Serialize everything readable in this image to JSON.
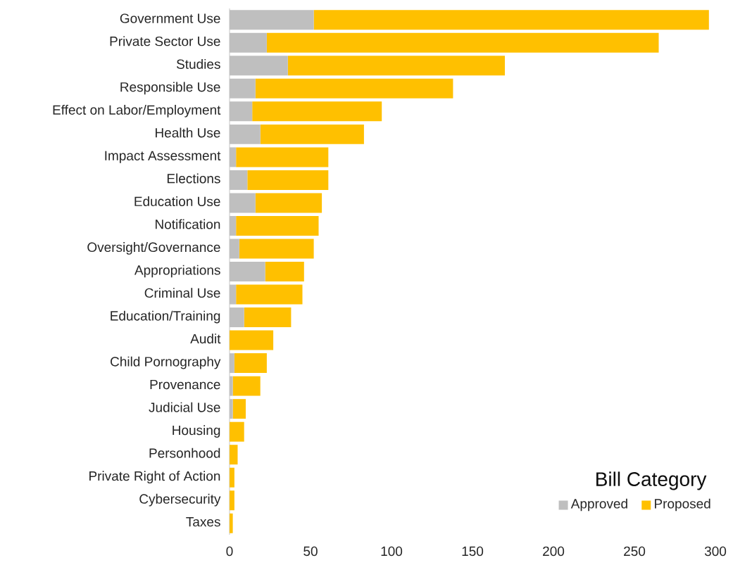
{
  "chart_data": {
    "type": "bar",
    "orientation": "horizontal",
    "stacked": true,
    "categories": [
      "Government Use",
      "Private Sector Use",
      "Studies",
      "Responsible Use",
      "Effect on Labor/Employment",
      "Health Use",
      "Impact Assessment",
      "Elections",
      "Education Use",
      "Notification",
      "Oversight/Governance",
      "Appropriations",
      "Criminal Use",
      "Education/Training",
      "Audit",
      "Child Pornography",
      "Provenance",
      "Judicial Use",
      "Housing",
      "Personhood",
      "Private Right of Action",
      "Cybersecurity",
      "Taxes"
    ],
    "series": [
      {
        "name": "Approved",
        "color": "#bfbfbf",
        "values": [
          52,
          23,
          36,
          16,
          14,
          19,
          4,
          11,
          16,
          4,
          6,
          22,
          4,
          9,
          0,
          3,
          2,
          2,
          0,
          0,
          0,
          0,
          0
        ]
      },
      {
        "name": "Proposed",
        "color": "#ffc000",
        "values": [
          244,
          242,
          134,
          122,
          80,
          64,
          57,
          50,
          41,
          51,
          46,
          24,
          41,
          29,
          27,
          20,
          17,
          8,
          9,
          5,
          3,
          3,
          2
        ]
      }
    ],
    "xlim": [
      0,
      300
    ],
    "xticks": [
      0,
      50,
      100,
      150,
      200,
      250,
      300
    ],
    "legend_title": "Bill Category",
    "legend": "bottom right",
    "grid": false
  }
}
